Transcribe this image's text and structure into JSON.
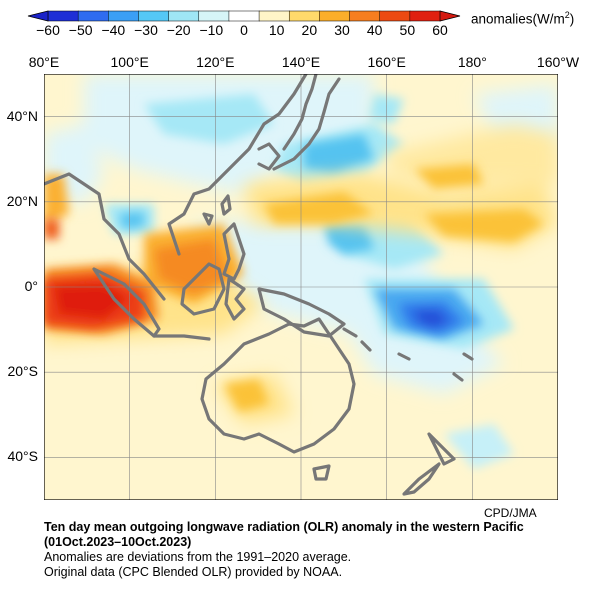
{
  "colorbar": {
    "unit_label": "anomalies(W/m",
    "unit_exp": "2",
    "unit_close": ")",
    "ticks": [
      "−60",
      "−50",
      "−40",
      "−30",
      "−20",
      "−10",
      "0",
      "10",
      "20",
      "30",
      "40",
      "50",
      "60"
    ],
    "colors": [
      "#1e2fd6",
      "#2f6cf0",
      "#3b9ff5",
      "#55c8f6",
      "#9fe6f5",
      "#d6f5f7",
      "#ffffff",
      "#fff5c8",
      "#ffd96b",
      "#fbae2a",
      "#f67e1f",
      "#ec4a12",
      "#e02010"
    ]
  },
  "map": {
    "lon_labels": [
      "80°E",
      "100°E",
      "120°E",
      "140°E",
      "160°E",
      "180°",
      "160°W"
    ],
    "lat_labels": [
      "40°N",
      "20°N",
      "0°",
      "20°S",
      "40°S"
    ],
    "lon_range": [
      80,
      200
    ],
    "lat_range": [
      -50,
      50
    ],
    "grid": true,
    "coastline_color": "#777777",
    "land_masses": [
      "Asia",
      "Japan",
      "Philippines",
      "Borneo",
      "Sumatra",
      "Sulawesi",
      "New Guinea",
      "Australia",
      "New Zealand"
    ]
  },
  "anomaly_features": [
    {
      "kind": "positive",
      "level": "50 to 60",
      "lon": [
        80,
        108
      ],
      "lat": [
        -8,
        4
      ]
    },
    {
      "kind": "positive",
      "level": "20 to 40",
      "lon": [
        108,
        125
      ],
      "lat": [
        -4,
        12
      ]
    },
    {
      "kind": "positive",
      "level": "10 to 30",
      "lon": [
        140,
        190
      ],
      "lat": [
        8,
        24
      ]
    },
    {
      "kind": "positive",
      "level": "10 to 20",
      "lon": [
        120,
        134
      ],
      "lat": [
        -28,
        -22
      ]
    },
    {
      "kind": "negative",
      "level": "-40 to -60",
      "lon": [
        155,
        180
      ],
      "lat": [
        -10,
        0
      ]
    },
    {
      "kind": "negative",
      "level": "-10 to -30",
      "lon": [
        135,
        160
      ],
      "lat": [
        24,
        34
      ]
    },
    {
      "kind": "negative",
      "level": "-10 to -30",
      "lon": [
        150,
        160
      ],
      "lat": [
        8,
        16
      ]
    }
  ],
  "credit": "CPD/JMA",
  "caption": {
    "title_line1": "Ten day mean outgoing longwave radiation (OLR) anomaly in the western Pacific",
    "title_line2": "(01Oct.2023–10Oct.2023)",
    "note1": "Anomalies are deviations from the 1991–2020 average.",
    "note2": "Original data (CPC Blended OLR) provided by NOAA."
  }
}
